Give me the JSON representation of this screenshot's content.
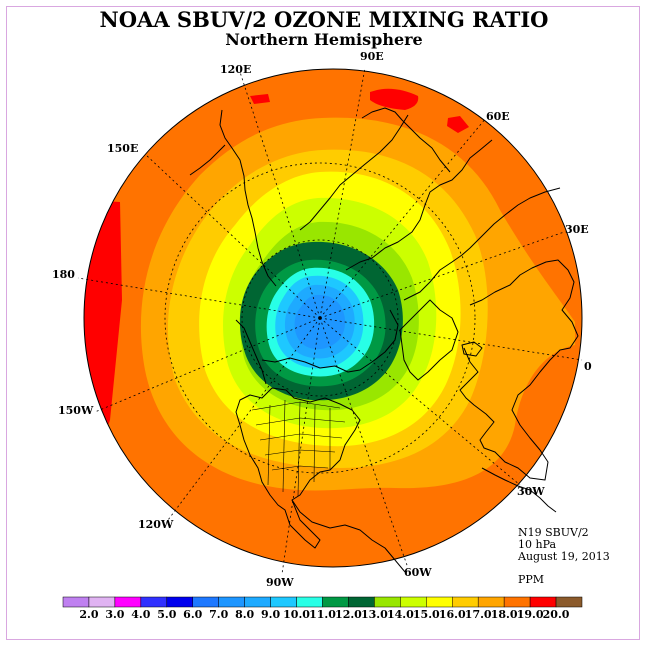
{
  "title": "NOAA SBUV/2 OZONE MIXING RATIO",
  "subtitle": "Northern Hemisphere",
  "longitude_labels": {
    "lon_120e": "120E",
    "lon_90e": "90E",
    "lon_60e": "60E",
    "lon_150e": "150E",
    "lon_30e": "30E",
    "lon_180": "180",
    "lon_0": "0",
    "lon_150w": "150W",
    "lon_30w": "30W",
    "lon_120w": "120W",
    "lon_60w": "60W",
    "lon_90w": "90W"
  },
  "info": {
    "instrument": "N19 SBUV/2",
    "level": "10 hPa",
    "date": "August 19, 2013",
    "units": "PPM"
  },
  "colorbar": {
    "ticks": [
      "2.0",
      "3.0",
      "4.0",
      "5.0",
      "6.0",
      "7.0",
      "8.0",
      "9.0",
      "10.0",
      "11.0",
      "12.0",
      "13.0",
      "14.0",
      "15.0",
      "16.0",
      "17.0",
      "18.0",
      "19.0",
      "20.0"
    ],
    "colors": [
      "#bf80f0",
      "#e0b3f2",
      "#ff00ff",
      "#3030ff",
      "#0000ee",
      "#1e78ff",
      "#1e96ff",
      "#1eaaff",
      "#1ec8ff",
      "#28ffe6",
      "#009944",
      "#006633",
      "#99e600",
      "#ccff00",
      "#ffff00",
      "#ffcc00",
      "#ffa500",
      "#ff7300",
      "#ff0000",
      "#8b5a2b"
    ]
  },
  "map_colors": {
    "c19": "#ff0000",
    "c18": "#ff7300",
    "c17": "#ffa500",
    "c16": "#ffcc00",
    "c15": "#ffff00",
    "c14": "#ccff00",
    "c13": "#99e600",
    "c12": "#006633",
    "c11": "#009944",
    "c10": "#28ffe6",
    "c9": "#1ec8ff",
    "c8": "#1eaaff",
    "c7": "#1e96ff",
    "c6": "#1e78ff"
  }
}
